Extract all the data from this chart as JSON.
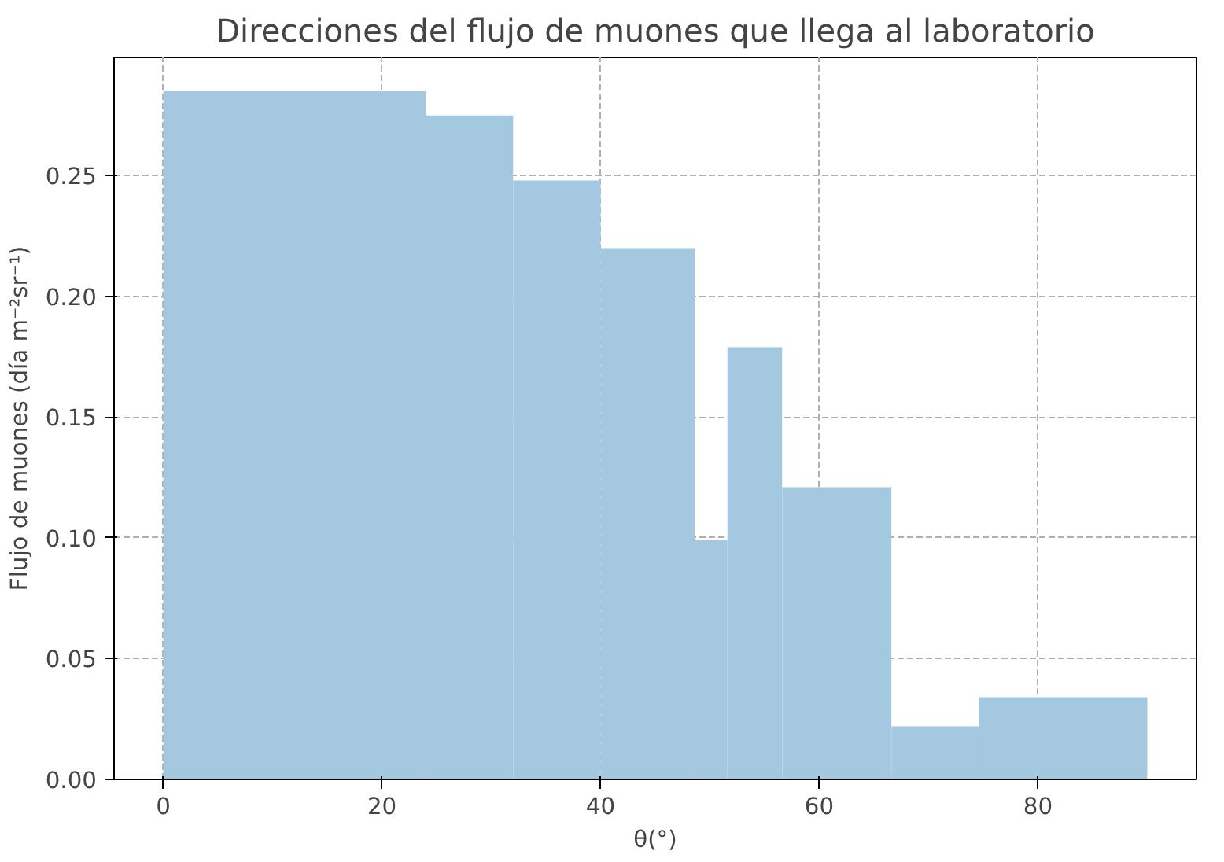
{
  "chart_data": {
    "type": "histogram",
    "title": "Direcciones del flujo de muones que llega al laboratorio",
    "xlabel": "θ(°)",
    "ylabel": "Flujo de muones (día m⁻²sr⁻¹)",
    "bins": [
      0,
      24,
      32,
      40,
      48.6,
      51.6,
      56.6,
      66.6,
      74.6,
      90
    ],
    "values": [
      0.285,
      0.275,
      0.248,
      0.22,
      0.099,
      0.179,
      0.121,
      0.022,
      0.034
    ],
    "color": "#a5c8e1",
    "xlim": [
      -4.5,
      94.5
    ],
    "ylim": [
      0,
      0.299
    ],
    "xticks": [
      0,
      20,
      40,
      60,
      80
    ],
    "yticks": [
      {
        "value": 0,
        "label": "0.00"
      },
      {
        "value": 0.05,
        "label": "0.05"
      },
      {
        "value": 0.1,
        "label": "0.10"
      },
      {
        "value": 0.15,
        "label": "0.15"
      },
      {
        "value": 0.2,
        "label": "0.20"
      },
      {
        "value": 0.25,
        "label": "0.25"
      }
    ],
    "grid": true
  }
}
